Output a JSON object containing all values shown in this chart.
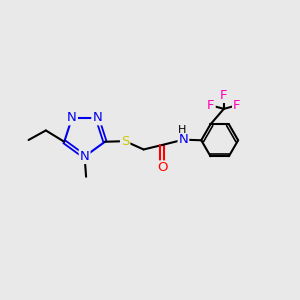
{
  "background_color": "#e9e9e9",
  "fig_size": [
    3.0,
    3.0
  ],
  "dpi": 100,
  "atom_colors": {
    "C": "#000000",
    "N": "#0000ee",
    "O": "#ff0000",
    "S": "#cccc00",
    "F": "#ff00bb",
    "H": "#000000"
  },
  "bond_color": "#000000",
  "bond_width": 1.5,
  "font_size_atom": 9.5,
  "font_size_small": 8.0
}
